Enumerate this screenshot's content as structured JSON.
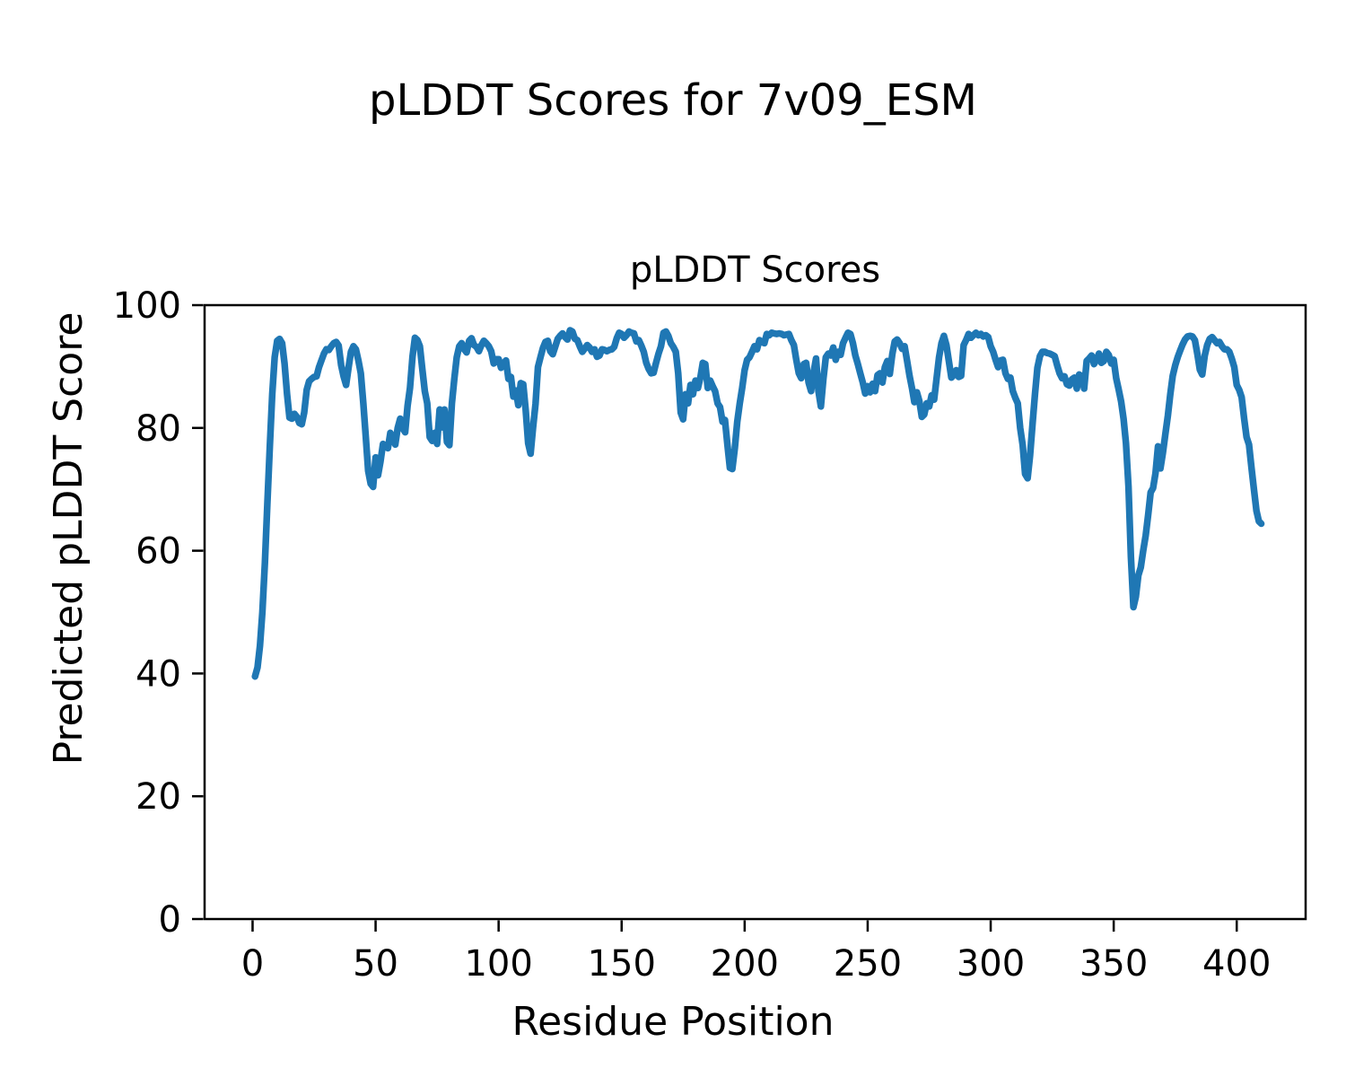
{
  "chart_data": {
    "type": "line",
    "suptitle": "pLDDT Scores for 7v09_ESM",
    "title": "pLDDT Scores",
    "xlabel": "Residue Position",
    "ylabel": "Predicted pLDDT Score",
    "xlim": [
      -19.5,
      428
    ],
    "ylim": [
      0,
      100
    ],
    "xticks": [
      0,
      50,
      100,
      150,
      200,
      250,
      300,
      350,
      400
    ],
    "yticks": [
      0,
      20,
      40,
      60,
      80,
      100
    ],
    "grid": false,
    "legend": null,
    "frame_color": "#000000",
    "text_color": "#000000",
    "series": [
      {
        "name": "pLDDT",
        "color": "#1f77b4",
        "linewidth": 7.5,
        "x_start": 1,
        "x_step": 1,
        "values": [
          39.5,
          41,
          44.5,
          50,
          58,
          67.5,
          77,
          85.5,
          91.5,
          94.2,
          94.5,
          93.8,
          90.5,
          85.5,
          81.7,
          81.5,
          82.3,
          81.8,
          80.8,
          80.6,
          82.5,
          86.2,
          87.6,
          88,
          88.3,
          88.4,
          89.9,
          91,
          92.1,
          92.8,
          92.7,
          93.3,
          93.8,
          94,
          93.4,
          90.2,
          88.4,
          87,
          89.8,
          92.4,
          93.3,
          92.8,
          91,
          88.9,
          84,
          78.6,
          73,
          70.9,
          70.4,
          75.2,
          72.3,
          74.5,
          77.4,
          77,
          76.7,
          79.2,
          78.3,
          77.3,
          80,
          81.5,
          80,
          79.3,
          83.6,
          86.5,
          91.6,
          94.7,
          94.3,
          93.3,
          89.5,
          86,
          84,
          78.5,
          77.9,
          79.2,
          77.4,
          83,
          80.1,
          83,
          77.7,
          77.2,
          84,
          88,
          91.5,
          93.3,
          93.8,
          92.8,
          92.3,
          94.2,
          94.6,
          93.5,
          93.2,
          92.5,
          93.5,
          94.2,
          93.8,
          93.3,
          92.5,
          90.5,
          91.2,
          91.2,
          89.8,
          90.5,
          91,
          88,
          88.3,
          85.1,
          86.1,
          83.7,
          87.3,
          87.1,
          83,
          77.5,
          75.8,
          80,
          83.9,
          89.9,
          91.5,
          93,
          94,
          94.2,
          92.5,
          92,
          93.2,
          94.5,
          95,
          95.4,
          94.8,
          94.4,
          95.9,
          95.7,
          94.5,
          94.3,
          93.3,
          92.4,
          92.9,
          93.5,
          93.1,
          92.4,
          92.8,
          91.6,
          91.8,
          92.8,
          92.7,
          92.5,
          92.7,
          92.8,
          93.2,
          94.6,
          95.5,
          95.3,
          94.7,
          95.1,
          95.7,
          95.5,
          95.4,
          94.1,
          94.3,
          93.4,
          92.4,
          90.6,
          89.6,
          88.9,
          89,
          90.6,
          92.1,
          93.3,
          95.5,
          95.7,
          95,
          93.8,
          93.2,
          92.4,
          88.9,
          82.5,
          81.4,
          85.5,
          84,
          87,
          85.5,
          87.7,
          86.5,
          88.2,
          90.6,
          90.4,
          86.5,
          87.7,
          86.8,
          86,
          84,
          83.4,
          81,
          81.3,
          77.2,
          73.5,
          73.3,
          76.7,
          81,
          84,
          86.5,
          89.4,
          91.1,
          91.5,
          92.4,
          93.3,
          92.8,
          94.3,
          94,
          93.8,
          95.3,
          95.1,
          95.5,
          95.4,
          95.3,
          95.4,
          95.3,
          95.1,
          95.2,
          95.3,
          94.3,
          93.5,
          91.1,
          88.9,
          88.1,
          90.4,
          90.6,
          87.4,
          86,
          89,
          91.3,
          86,
          83.5,
          88,
          91.5,
          92.1,
          91.8,
          93.1,
          91.1,
          92.4,
          91.9,
          93.8,
          94.7,
          95.5,
          95.3,
          93.8,
          91.8,
          90.4,
          88.9,
          87.4,
          85.6,
          86.8,
          85.8,
          87.2,
          86,
          88.6,
          88.9,
          87.4,
          89.9,
          90.9,
          88.8,
          92,
          94.1,
          94.4,
          93.8,
          92.9,
          93.3,
          91,
          88.5,
          86.5,
          84.2,
          85.8,
          84.4,
          81.8,
          82.2,
          84,
          83.5,
          85.3,
          84.6,
          88,
          91.5,
          93.8,
          95,
          93.5,
          90.9,
          88.2,
          88.6,
          89.4,
          88.3,
          88.5,
          93.5,
          94.3,
          95.3,
          94.7,
          95.1,
          95.5,
          95.1,
          95.3,
          94.9,
          95.1,
          94.8,
          93.3,
          92.4,
          91.1,
          89.9,
          91,
          91.1,
          88.9,
          88,
          88.2,
          86,
          84.9,
          84,
          80,
          77.2,
          72.5,
          71.8,
          75.5,
          80.5,
          85.5,
          89.8,
          91.7,
          92.4,
          92.4,
          92.2,
          92.1,
          91.9,
          91.7,
          90.2,
          88.9,
          88.1,
          88.4,
          87.1,
          86.9,
          87.9,
          88.2,
          86.4,
          88.7,
          88.4,
          86.4,
          90.9,
          91.3,
          91.8,
          90.4,
          91.1,
          92.1,
          90.6,
          90.9,
          92.4,
          91.9,
          90.5,
          91.1,
          88.1,
          86.3,
          84.3,
          81.5,
          77.5,
          70.5,
          59,
          50.8,
          52.5,
          56,
          57.3,
          60,
          62.5,
          65.8,
          69.5,
          70.2,
          72.6,
          77,
          73.4,
          76,
          79,
          82,
          85.5,
          88.5,
          90.2,
          91.5,
          92.6,
          93.6,
          94.4,
          94.9,
          95,
          94.9,
          94.3,
          92,
          89.5,
          88.7,
          91.8,
          93.5,
          94.5,
          94.8,
          94.3,
          93.8,
          94,
          93.3,
          92.8,
          92.8,
          92.4,
          91.3,
          89.9,
          87,
          86.2,
          85,
          81.5,
          78.5,
          77.3,
          73.5,
          70,
          66.5,
          64.8,
          64.4
        ]
      }
    ]
  }
}
